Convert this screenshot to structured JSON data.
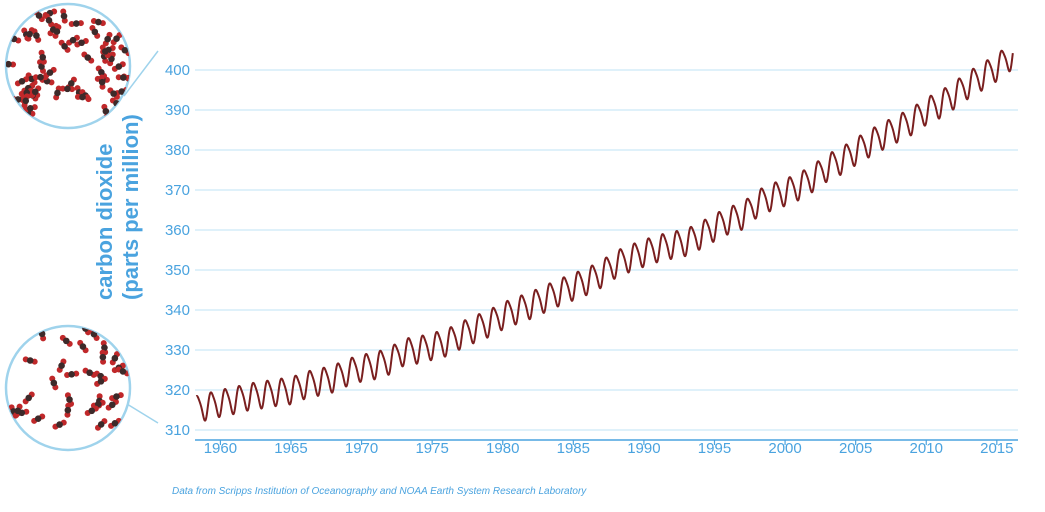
{
  "chart_data": {
    "type": "line",
    "title": "",
    "ylabel_line1": "carbon dioxide",
    "ylabel_line2": "(parts per million)",
    "xlabel": "",
    "xlim": [
      1958.2,
      2016.5
    ],
    "ylim": [
      310,
      405
    ],
    "x_ticks": [
      1960,
      1965,
      1970,
      1975,
      1980,
      1985,
      1990,
      1995,
      2000,
      2005,
      2010,
      2015
    ],
    "y_ticks": [
      310,
      320,
      330,
      340,
      350,
      360,
      370,
      380,
      390,
      400
    ],
    "grid": true,
    "series": [
      {
        "color": "#7a1f1f",
        "seasonal_amplitude_ppm": 3.2,
        "annual_mean": {
          "x": [
            1959,
            1960,
            1961,
            1962,
            1963,
            1964,
            1965,
            1966,
            1967,
            1968,
            1969,
            1970,
            1971,
            1972,
            1973,
            1974,
            1975,
            1976,
            1977,
            1978,
            1979,
            1980,
            1981,
            1982,
            1983,
            1984,
            1985,
            1986,
            1987,
            1988,
            1989,
            1990,
            1991,
            1992,
            1993,
            1994,
            1995,
            1996,
            1997,
            1998,
            1999,
            2000,
            2001,
            2002,
            2003,
            2004,
            2005,
            2006,
            2007,
            2008,
            2009,
            2010,
            2011,
            2012,
            2013,
            2014,
            2015,
            2016
          ],
          "y": [
            316.0,
            316.9,
            317.6,
            318.5,
            319.0,
            319.6,
            320.0,
            321.4,
            322.2,
            323.0,
            324.6,
            325.7,
            326.3,
            327.5,
            329.7,
            330.2,
            331.1,
            332.0,
            333.8,
            335.4,
            336.8,
            338.7,
            340.1,
            341.4,
            343.0,
            344.6,
            346.0,
            347.4,
            349.2,
            351.6,
            353.1,
            354.4,
            355.6,
            356.4,
            357.1,
            358.8,
            360.8,
            362.6,
            363.7,
            366.7,
            368.4,
            369.6,
            371.1,
            373.2,
            375.8,
            377.5,
            379.8,
            381.9,
            383.8,
            385.6,
            387.4,
            389.9,
            391.6,
            393.9,
            396.5,
            398.6,
            400.8,
            403.5
          ]
        }
      }
    ],
    "source_note": "Data from Scripps Institution of Oceanography and NOAA Earth System Research Laboratory"
  },
  "decor": {
    "circle_border_color": "#9fd3ec",
    "molecule_carbon_color": "#3d2a2a",
    "molecule_oxygen_color": "#c0282a"
  }
}
